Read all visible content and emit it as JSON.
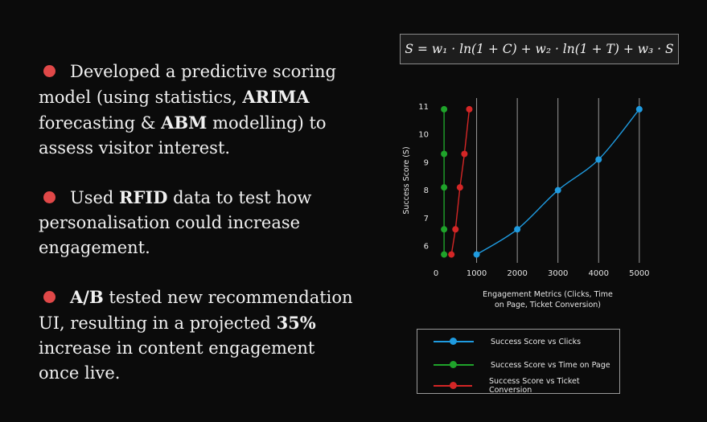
{
  "bullets": [
    {
      "parts": [
        {
          "text": "Developed a predictive scoring model (using statistics, ",
          "bold": false
        },
        {
          "text": "ARIMA",
          "bold": true
        },
        {
          "text": " forecasting & ",
          "bold": false
        },
        {
          "text": "ABM",
          "bold": true
        },
        {
          "text": " modelling) to assess visitor interest.",
          "bold": false
        }
      ]
    },
    {
      "parts": [
        {
          "text": "Used ",
          "bold": false
        },
        {
          "text": "RFID",
          "bold": true
        },
        {
          "text": " data to test how personalisation could increase engagement.",
          "bold": false
        }
      ]
    },
    {
      "parts": [
        {
          "text": "A/B",
          "bold": true
        },
        {
          "text": " tested new recommendation UI, resulting in a projected ",
          "bold": false
        },
        {
          "text": "35%",
          "bold": true
        },
        {
          "text": " increase in content engagement once live.",
          "bold": false
        }
      ]
    }
  ],
  "colors": {
    "bullet_dot": "#e04848",
    "background": "#0b0b0b"
  },
  "formula": "S = w₁ · ln(1 + C) + w₂ · ln(1 + T) + w₃ · S",
  "chart_data": {
    "type": "line",
    "title": "",
    "xlabel": "Engagement Metrics (Clicks, Time on Page, Ticket Conversion)",
    "ylabel": "Success Score (S)",
    "xlim": [
      0,
      5300
    ],
    "ylim": [
      5.4,
      11.3
    ],
    "x_ticks": [
      0,
      1000,
      2000,
      3000,
      4000,
      5000
    ],
    "y_ticks": [
      6,
      7,
      8,
      9,
      10,
      11
    ],
    "grid": "vertical",
    "legend_position": "below",
    "series": [
      {
        "name": "Success Score vs Clicks",
        "color": "#1f9be0",
        "x": [
          1000,
          2000,
          3000,
          4000,
          5000
        ],
        "y": [
          5.7,
          6.6,
          8.0,
          9.1,
          10.9
        ]
      },
      {
        "name": "Success Score vs Time on Page",
        "color": "#1fa32a",
        "x": [
          200,
          200,
          200,
          200,
          200
        ],
        "y": [
          5.7,
          6.6,
          8.1,
          9.3,
          10.9
        ]
      },
      {
        "name": "Success Score vs Ticket Conversion",
        "color": "#d42626",
        "x": [
          380,
          480,
          590,
          700,
          820
        ],
        "y": [
          5.7,
          6.6,
          8.1,
          9.3,
          10.9
        ]
      }
    ]
  }
}
